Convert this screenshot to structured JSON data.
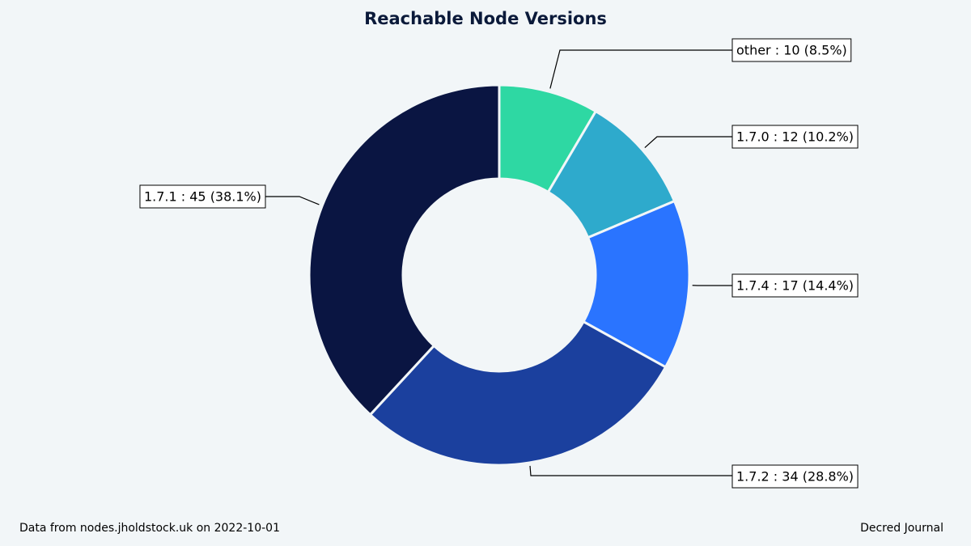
{
  "chart_data": {
    "type": "pie",
    "title": "Reachable Node Versions",
    "categories": [
      "other",
      "1.7.0",
      "1.7.4",
      "1.7.2",
      "1.7.1"
    ],
    "values": [
      10,
      12,
      17,
      34,
      45
    ],
    "labels": [
      "other : 10 (8.5%)",
      "1.7.0 : 12 (10.2%)",
      "1.7.4 : 17 (14.4%)",
      "1.7.2 : 34 (28.8%)",
      "1.7.1 : 45 (38.1%)"
    ],
    "colors": [
      "#2ed8a3",
      "#2eaacc",
      "#2a74ff",
      "#1b409e",
      "#0a1542"
    ],
    "donut": true,
    "start": "top",
    "direction": "clockwise"
  },
  "footer": {
    "source": "Data from nodes.jholdstock.uk on 2022-10-01",
    "brand": "Decred Journal"
  }
}
